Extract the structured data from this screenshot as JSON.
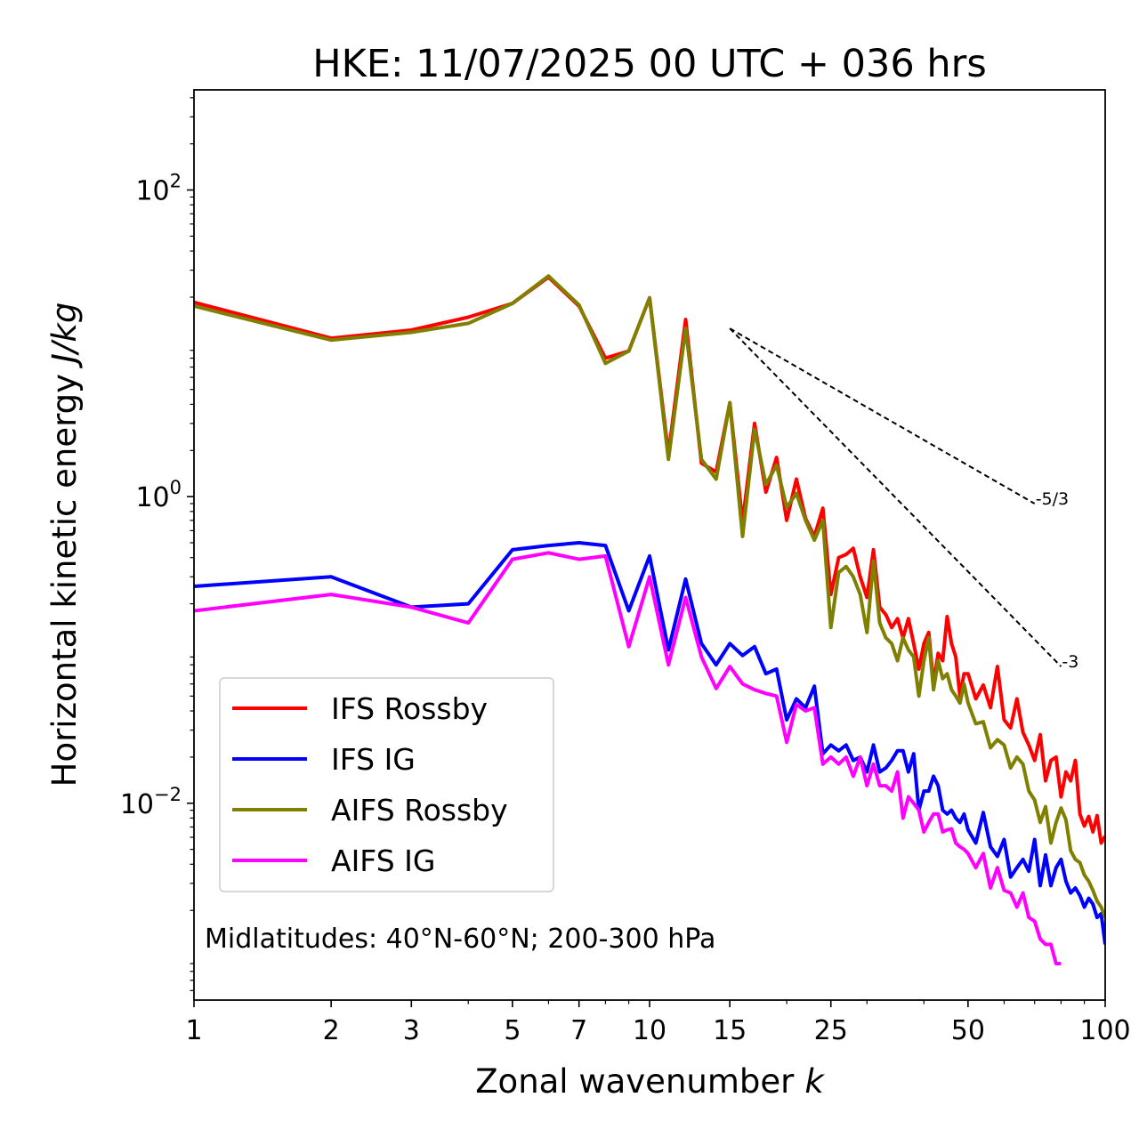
{
  "chart_data": {
    "type": "line",
    "title": "HKE: 11/07/2025 00 UTC + 036 hrs",
    "xlabel": "Zonal wavenumber",
    "xlabel_var": "k",
    "ylabel": "Horizontal kinetic energy",
    "ylabel_unit": "J/kg",
    "xscale": "log",
    "yscale": "log",
    "xlim": [
      1,
      100
    ],
    "ylim": [
      0.00052,
      450
    ],
    "x_ticks": [
      1,
      2,
      3,
      5,
      7,
      10,
      15,
      25,
      50,
      100
    ],
    "x_tick_labels": [
      "1",
      "2",
      "3",
      "5",
      "7",
      "10",
      "15",
      "25",
      "50",
      "100"
    ],
    "y_ticks": [
      0.01,
      1,
      100
    ],
    "y_tick_labels": [
      {
        "base": "10",
        "exp": "−2"
      },
      {
        "base": "10",
        "exp": "0"
      },
      {
        "base": "10",
        "exp": "2"
      }
    ],
    "legend_position": "lower-left",
    "annotation": "Midlatitudes: 40°N-60°N; 200-300 hPa",
    "reference_lines": [
      {
        "label": "-5/3",
        "x": [
          15,
          70
        ],
        "y": [
          12.5,
          0.9
        ]
      },
      {
        "label": "-3",
        "x": [
          15,
          80
        ],
        "y": [
          12.5,
          0.078
        ]
      }
    ],
    "series": [
      {
        "name": "IFS Rossby",
        "color": "#ff0000",
        "x": [
          1,
          2,
          3,
          4,
          5,
          6,
          7,
          8,
          9,
          10,
          11,
          12,
          13,
          14,
          15,
          16,
          17,
          18,
          19,
          20,
          21,
          22,
          23,
          24,
          25,
          26,
          27,
          28,
          29,
          30,
          31,
          32,
          33,
          34,
          35,
          36,
          37,
          38,
          39,
          40,
          41,
          42,
          43,
          44,
          45,
          46,
          47,
          48,
          49,
          50,
          52,
          54,
          56,
          58,
          60,
          62,
          64,
          66,
          68,
          70,
          72,
          74,
          76,
          78,
          80,
          82,
          84,
          86,
          88,
          90,
          92,
          94,
          96,
          98,
          100
        ],
        "values": [
          18.5,
          10.8,
          12.2,
          14.8,
          18.2,
          27,
          17.5,
          8,
          8.9,
          19.8,
          1.9,
          14.3,
          1.65,
          1.45,
          4.1,
          0.68,
          3,
          1.07,
          1.8,
          0.7,
          1.3,
          0.72,
          0.55,
          0.84,
          0.23,
          0.4,
          0.42,
          0.46,
          0.3,
          0.22,
          0.45,
          0.19,
          0.17,
          0.14,
          0.16,
          0.12,
          0.16,
          0.11,
          0.075,
          0.11,
          0.13,
          0.06,
          0.095,
          0.085,
          0.165,
          0.11,
          0.09,
          0.05,
          0.07,
          0.07,
          0.048,
          0.059,
          0.042,
          0.078,
          0.035,
          0.031,
          0.048,
          0.029,
          0.024,
          0.019,
          0.028,
          0.014,
          0.019,
          0.02,
          0.011,
          0.016,
          0.014,
          0.019,
          0.0085,
          0.0071,
          0.0082,
          0.0065,
          0.0083,
          0.0055,
          0.0061
        ]
      },
      {
        "name": "IFS IG",
        "color": "#0000ff",
        "x": [
          1,
          2,
          3,
          4,
          5,
          6,
          7,
          8,
          9,
          10,
          11,
          12,
          13,
          14,
          15,
          16,
          17,
          18,
          19,
          20,
          21,
          22,
          23,
          24,
          25,
          26,
          27,
          28,
          29,
          30,
          31,
          32,
          33,
          34,
          35,
          36,
          37,
          38,
          39,
          40,
          41,
          42,
          43,
          44,
          45,
          46,
          47,
          48,
          49,
          50,
          52,
          54,
          56,
          58,
          60,
          62,
          64,
          66,
          68,
          70,
          72,
          74,
          76,
          78,
          80,
          82,
          84,
          86,
          88,
          90,
          92,
          94,
          96,
          98,
          100
        ],
        "values": [
          0.26,
          0.3,
          0.19,
          0.2,
          0.45,
          0.48,
          0.5,
          0.48,
          0.18,
          0.41,
          0.1,
          0.29,
          0.11,
          0.08,
          0.11,
          0.092,
          0.105,
          0.07,
          0.075,
          0.035,
          0.048,
          0.042,
          0.058,
          0.021,
          0.024,
          0.022,
          0.024,
          0.019,
          0.02,
          0.016,
          0.024,
          0.016,
          0.017,
          0.019,
          0.022,
          0.022,
          0.016,
          0.021,
          0.009,
          0.012,
          0.012,
          0.015,
          0.013,
          0.009,
          0.0085,
          0.009,
          0.008,
          0.0075,
          0.0085,
          0.0067,
          0.0055,
          0.0087,
          0.0052,
          0.0045,
          0.0058,
          0.0033,
          0.0038,
          0.0043,
          0.0036,
          0.0058,
          0.0029,
          0.0046,
          0.0029,
          0.0038,
          0.0043,
          0.0031,
          0.0026,
          0.0028,
          0.0025,
          0.0021,
          0.0024,
          0.0022,
          0.0018,
          0.0019,
          0.0012
        ]
      },
      {
        "name": "AIFS Rossby",
        "color": "#808000",
        "x": [
          1,
          2,
          3,
          4,
          5,
          6,
          7,
          8,
          9,
          10,
          11,
          12,
          13,
          14,
          15,
          16,
          17,
          18,
          19,
          20,
          21,
          22,
          23,
          24,
          25,
          26,
          27,
          28,
          29,
          30,
          31,
          32,
          33,
          34,
          35,
          36,
          37,
          38,
          39,
          40,
          41,
          42,
          43,
          44,
          45,
          46,
          47,
          48,
          49,
          50,
          52,
          54,
          56,
          58,
          60,
          62,
          64,
          66,
          68,
          70,
          72,
          74,
          76,
          78,
          80,
          82,
          84,
          86,
          88,
          90,
          92,
          94,
          96,
          98,
          100
        ],
        "values": [
          17.5,
          10.5,
          11.8,
          13.5,
          18.2,
          27.5,
          17.8,
          7.4,
          8.9,
          19.8,
          1.75,
          12.5,
          1.75,
          1.3,
          4.1,
          0.55,
          2.75,
          1.2,
          1.6,
          0.85,
          1.05,
          0.7,
          0.52,
          0.7,
          0.14,
          0.32,
          0.35,
          0.3,
          0.23,
          0.13,
          0.38,
          0.15,
          0.12,
          0.11,
          0.085,
          0.12,
          0.1,
          0.09,
          0.05,
          0.085,
          0.12,
          0.055,
          0.085,
          0.065,
          0.07,
          0.055,
          0.05,
          0.045,
          0.06,
          0.045,
          0.033,
          0.034,
          0.023,
          0.026,
          0.024,
          0.017,
          0.02,
          0.018,
          0.012,
          0.0105,
          0.0075,
          0.0095,
          0.0055,
          0.0075,
          0.0093,
          0.0078,
          0.0049,
          0.0043,
          0.0041,
          0.0034,
          0.0031,
          0.0027,
          0.0023,
          0.0021,
          0.0018
        ]
      },
      {
        "name": "AIFS IG",
        "color": "#ff00ff",
        "x": [
          1,
          2,
          3,
          4,
          5,
          6,
          7,
          8,
          9,
          10,
          11,
          12,
          13,
          14,
          15,
          16,
          17,
          18,
          19,
          20,
          21,
          22,
          23,
          24,
          25,
          26,
          27,
          28,
          29,
          30,
          31,
          32,
          33,
          34,
          35,
          36,
          37,
          38,
          39,
          40,
          41,
          42,
          43,
          44,
          45,
          46,
          47,
          48,
          49,
          50,
          52,
          54,
          56,
          58,
          60,
          62,
          64,
          66,
          68,
          70,
          72,
          74,
          76,
          78,
          80
        ],
        "values": [
          0.18,
          0.23,
          0.19,
          0.15,
          0.39,
          0.43,
          0.39,
          0.41,
          0.105,
          0.3,
          0.08,
          0.22,
          0.09,
          0.056,
          0.078,
          0.06,
          0.055,
          0.052,
          0.05,
          0.025,
          0.044,
          0.04,
          0.042,
          0.018,
          0.02,
          0.018,
          0.02,
          0.015,
          0.02,
          0.013,
          0.018,
          0.013,
          0.013,
          0.012,
          0.016,
          0.008,
          0.011,
          0.01,
          0.009,
          0.0065,
          0.0075,
          0.0085,
          0.0085,
          0.0065,
          0.0067,
          0.0068,
          0.0055,
          0.0052,
          0.005,
          0.0047,
          0.0038,
          0.0047,
          0.0028,
          0.0038,
          0.0027,
          0.0026,
          0.0021,
          0.0026,
          0.0018,
          0.0017,
          0.0013,
          0.0012,
          0.0012,
          0.0009,
          0.0009
        ]
      }
    ]
  }
}
